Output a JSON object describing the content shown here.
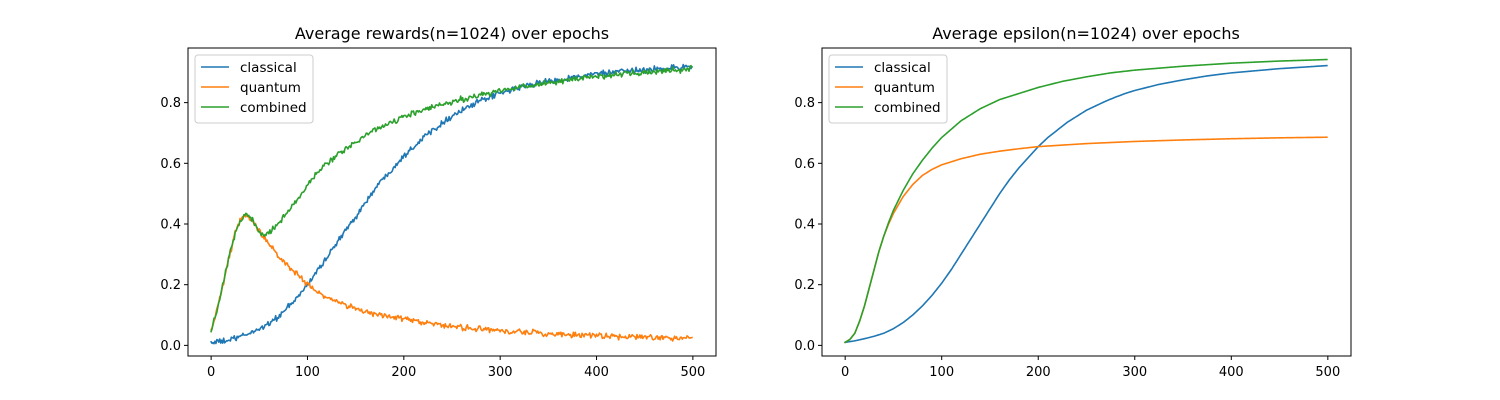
{
  "figure": {
    "background": "#ffffff"
  },
  "chart_data": [
    {
      "type": "line",
      "title": "Average rewards(n=1024) over epochs",
      "xlabel": "",
      "ylabel": "",
      "xlim": [
        -24,
        524
      ],
      "ylim": [
        -0.035,
        0.98
      ],
      "xticks": [
        0,
        100,
        200,
        300,
        400,
        500
      ],
      "yticks": [
        0.0,
        0.2,
        0.4,
        0.6,
        0.8
      ],
      "legend_position": "upper left",
      "grid": false,
      "noise": 0.008,
      "series": [
        {
          "name": "classical",
          "color": "#1f77b4",
          "points": [
            [
              0,
              0.01
            ],
            [
              10,
              0.012
            ],
            [
              20,
              0.018
            ],
            [
              30,
              0.028
            ],
            [
              40,
              0.04
            ],
            [
              50,
              0.055
            ],
            [
              60,
              0.072
            ],
            [
              70,
              0.095
            ],
            [
              80,
              0.125
            ],
            [
              90,
              0.16
            ],
            [
              100,
              0.2
            ],
            [
              110,
              0.245
            ],
            [
              120,
              0.29
            ],
            [
              130,
              0.335
            ],
            [
              140,
              0.38
            ],
            [
              150,
              0.425
            ],
            [
              160,
              0.47
            ],
            [
              170,
              0.515
            ],
            [
              180,
              0.555
            ],
            [
              190,
              0.59
            ],
            [
              200,
              0.625
            ],
            [
              210,
              0.655
            ],
            [
              220,
              0.685
            ],
            [
              230,
              0.71
            ],
            [
              240,
              0.735
            ],
            [
              250,
              0.755
            ],
            [
              260,
              0.775
            ],
            [
              270,
              0.79
            ],
            [
              280,
              0.805
            ],
            [
              290,
              0.82
            ],
            [
              300,
              0.83
            ],
            [
              320,
              0.85
            ],
            [
              340,
              0.865
            ],
            [
              360,
              0.875
            ],
            [
              380,
              0.885
            ],
            [
              400,
              0.895
            ],
            [
              420,
              0.9
            ],
            [
              440,
              0.905
            ],
            [
              460,
              0.91
            ],
            [
              480,
              0.915
            ],
            [
              499,
              0.92
            ]
          ]
        },
        {
          "name": "quantum",
          "color": "#ff7f0e",
          "points": [
            [
              0,
              0.05
            ],
            [
              5,
              0.1
            ],
            [
              10,
              0.17
            ],
            [
              15,
              0.24
            ],
            [
              20,
              0.31
            ],
            [
              25,
              0.37
            ],
            [
              30,
              0.41
            ],
            [
              35,
              0.43
            ],
            [
              40,
              0.42
            ],
            [
              45,
              0.4
            ],
            [
              50,
              0.375
            ],
            [
              55,
              0.355
            ],
            [
              60,
              0.335
            ],
            [
              70,
              0.295
            ],
            [
              80,
              0.26
            ],
            [
              90,
              0.23
            ],
            [
              100,
              0.2
            ],
            [
              110,
              0.178
            ],
            [
              120,
              0.16
            ],
            [
              130,
              0.145
            ],
            [
              140,
              0.133
            ],
            [
              150,
              0.122
            ],
            [
              160,
              0.112
            ],
            [
              180,
              0.097
            ],
            [
              200,
              0.085
            ],
            [
              225,
              0.073
            ],
            [
              250,
              0.063
            ],
            [
              275,
              0.055
            ],
            [
              300,
              0.048
            ],
            [
              340,
              0.04
            ],
            [
              380,
              0.034
            ],
            [
              420,
              0.03
            ],
            [
              460,
              0.027
            ],
            [
              499,
              0.025
            ]
          ]
        },
        {
          "name": "combined",
          "color": "#2ca02c",
          "points": [
            [
              0,
              0.05
            ],
            [
              5,
              0.1
            ],
            [
              10,
              0.17
            ],
            [
              15,
              0.24
            ],
            [
              20,
              0.31
            ],
            [
              25,
              0.37
            ],
            [
              30,
              0.41
            ],
            [
              35,
              0.43
            ],
            [
              40,
              0.425
            ],
            [
              45,
              0.4
            ],
            [
              50,
              0.37
            ],
            [
              55,
              0.36
            ],
            [
              60,
              0.375
            ],
            [
              70,
              0.4
            ],
            [
              80,
              0.44
            ],
            [
              90,
              0.48
            ],
            [
              100,
              0.53
            ],
            [
              110,
              0.57
            ],
            [
              120,
              0.6
            ],
            [
              130,
              0.625
            ],
            [
              140,
              0.65
            ],
            [
              150,
              0.67
            ],
            [
              160,
              0.69
            ],
            [
              170,
              0.71
            ],
            [
              180,
              0.725
            ],
            [
              190,
              0.74
            ],
            [
              200,
              0.755
            ],
            [
              220,
              0.775
            ],
            [
              240,
              0.795
            ],
            [
              260,
              0.81
            ],
            [
              280,
              0.825
            ],
            [
              300,
              0.84
            ],
            [
              320,
              0.85
            ],
            [
              340,
              0.86
            ],
            [
              360,
              0.87
            ],
            [
              380,
              0.88
            ],
            [
              400,
              0.885
            ],
            [
              430,
              0.895
            ],
            [
              460,
              0.9
            ],
            [
              499,
              0.91
            ]
          ]
        }
      ]
    },
    {
      "type": "line",
      "title": "Average epsilon(n=1024) over epochs",
      "xlabel": "",
      "ylabel": "",
      "xlim": [
        -24,
        524
      ],
      "ylim": [
        -0.035,
        0.98
      ],
      "xticks": [
        0,
        100,
        200,
        300,
        400,
        500
      ],
      "yticks": [
        0.0,
        0.2,
        0.4,
        0.6,
        0.8
      ],
      "legend_position": "upper left",
      "grid": false,
      "noise": 0,
      "series": [
        {
          "name": "classical",
          "color": "#1f77b4",
          "points": [
            [
              0,
              0.01
            ],
            [
              10,
              0.015
            ],
            [
              20,
              0.022
            ],
            [
              30,
              0.03
            ],
            [
              40,
              0.04
            ],
            [
              50,
              0.055
            ],
            [
              60,
              0.075
            ],
            [
              70,
              0.1
            ],
            [
              80,
              0.13
            ],
            [
              90,
              0.165
            ],
            [
              100,
              0.205
            ],
            [
              110,
              0.25
            ],
            [
              120,
              0.3
            ],
            [
              130,
              0.35
            ],
            [
              140,
              0.4
            ],
            [
              150,
              0.45
            ],
            [
              160,
              0.5
            ],
            [
              170,
              0.545
            ],
            [
              180,
              0.585
            ],
            [
              190,
              0.62
            ],
            [
              200,
              0.655
            ],
            [
              210,
              0.685
            ],
            [
              220,
              0.71
            ],
            [
              230,
              0.735
            ],
            [
              240,
              0.755
            ],
            [
              250,
              0.775
            ],
            [
              260,
              0.79
            ],
            [
              270,
              0.805
            ],
            [
              280,
              0.818
            ],
            [
              290,
              0.83
            ],
            [
              300,
              0.84
            ],
            [
              325,
              0.86
            ],
            [
              350,
              0.875
            ],
            [
              375,
              0.888
            ],
            [
              400,
              0.898
            ],
            [
              425,
              0.905
            ],
            [
              450,
              0.912
            ],
            [
              475,
              0.917
            ],
            [
              499,
              0.922
            ]
          ]
        },
        {
          "name": "quantum",
          "color": "#ff7f0e",
          "points": [
            [
              0,
              0.01
            ],
            [
              5,
              0.02
            ],
            [
              10,
              0.04
            ],
            [
              15,
              0.08
            ],
            [
              20,
              0.13
            ],
            [
              25,
              0.19
            ],
            [
              30,
              0.25
            ],
            [
              35,
              0.31
            ],
            [
              40,
              0.36
            ],
            [
              45,
              0.4
            ],
            [
              50,
              0.435
            ],
            [
              60,
              0.49
            ],
            [
              70,
              0.53
            ],
            [
              80,
              0.56
            ],
            [
              90,
              0.58
            ],
            [
              100,
              0.595
            ],
            [
              120,
              0.615
            ],
            [
              140,
              0.63
            ],
            [
              160,
              0.64
            ],
            [
              180,
              0.648
            ],
            [
              200,
              0.655
            ],
            [
              250,
              0.665
            ],
            [
              300,
              0.672
            ],
            [
              350,
              0.677
            ],
            [
              400,
              0.681
            ],
            [
              450,
              0.684
            ],
            [
              499,
              0.686
            ]
          ]
        },
        {
          "name": "combined",
          "color": "#2ca02c",
          "points": [
            [
              0,
              0.01
            ],
            [
              5,
              0.02
            ],
            [
              10,
              0.04
            ],
            [
              15,
              0.08
            ],
            [
              20,
              0.13
            ],
            [
              25,
              0.19
            ],
            [
              30,
              0.25
            ],
            [
              35,
              0.31
            ],
            [
              40,
              0.36
            ],
            [
              45,
              0.405
            ],
            [
              50,
              0.445
            ],
            [
              60,
              0.51
            ],
            [
              70,
              0.565
            ],
            [
              80,
              0.61
            ],
            [
              90,
              0.65
            ],
            [
              100,
              0.685
            ],
            [
              120,
              0.74
            ],
            [
              140,
              0.78
            ],
            [
              160,
              0.81
            ],
            [
              180,
              0.83
            ],
            [
              200,
              0.85
            ],
            [
              225,
              0.87
            ],
            [
              250,
              0.885
            ],
            [
              275,
              0.898
            ],
            [
              300,
              0.907
            ],
            [
              350,
              0.92
            ],
            [
              400,
              0.93
            ],
            [
              450,
              0.937
            ],
            [
              499,
              0.942
            ]
          ]
        }
      ]
    }
  ]
}
